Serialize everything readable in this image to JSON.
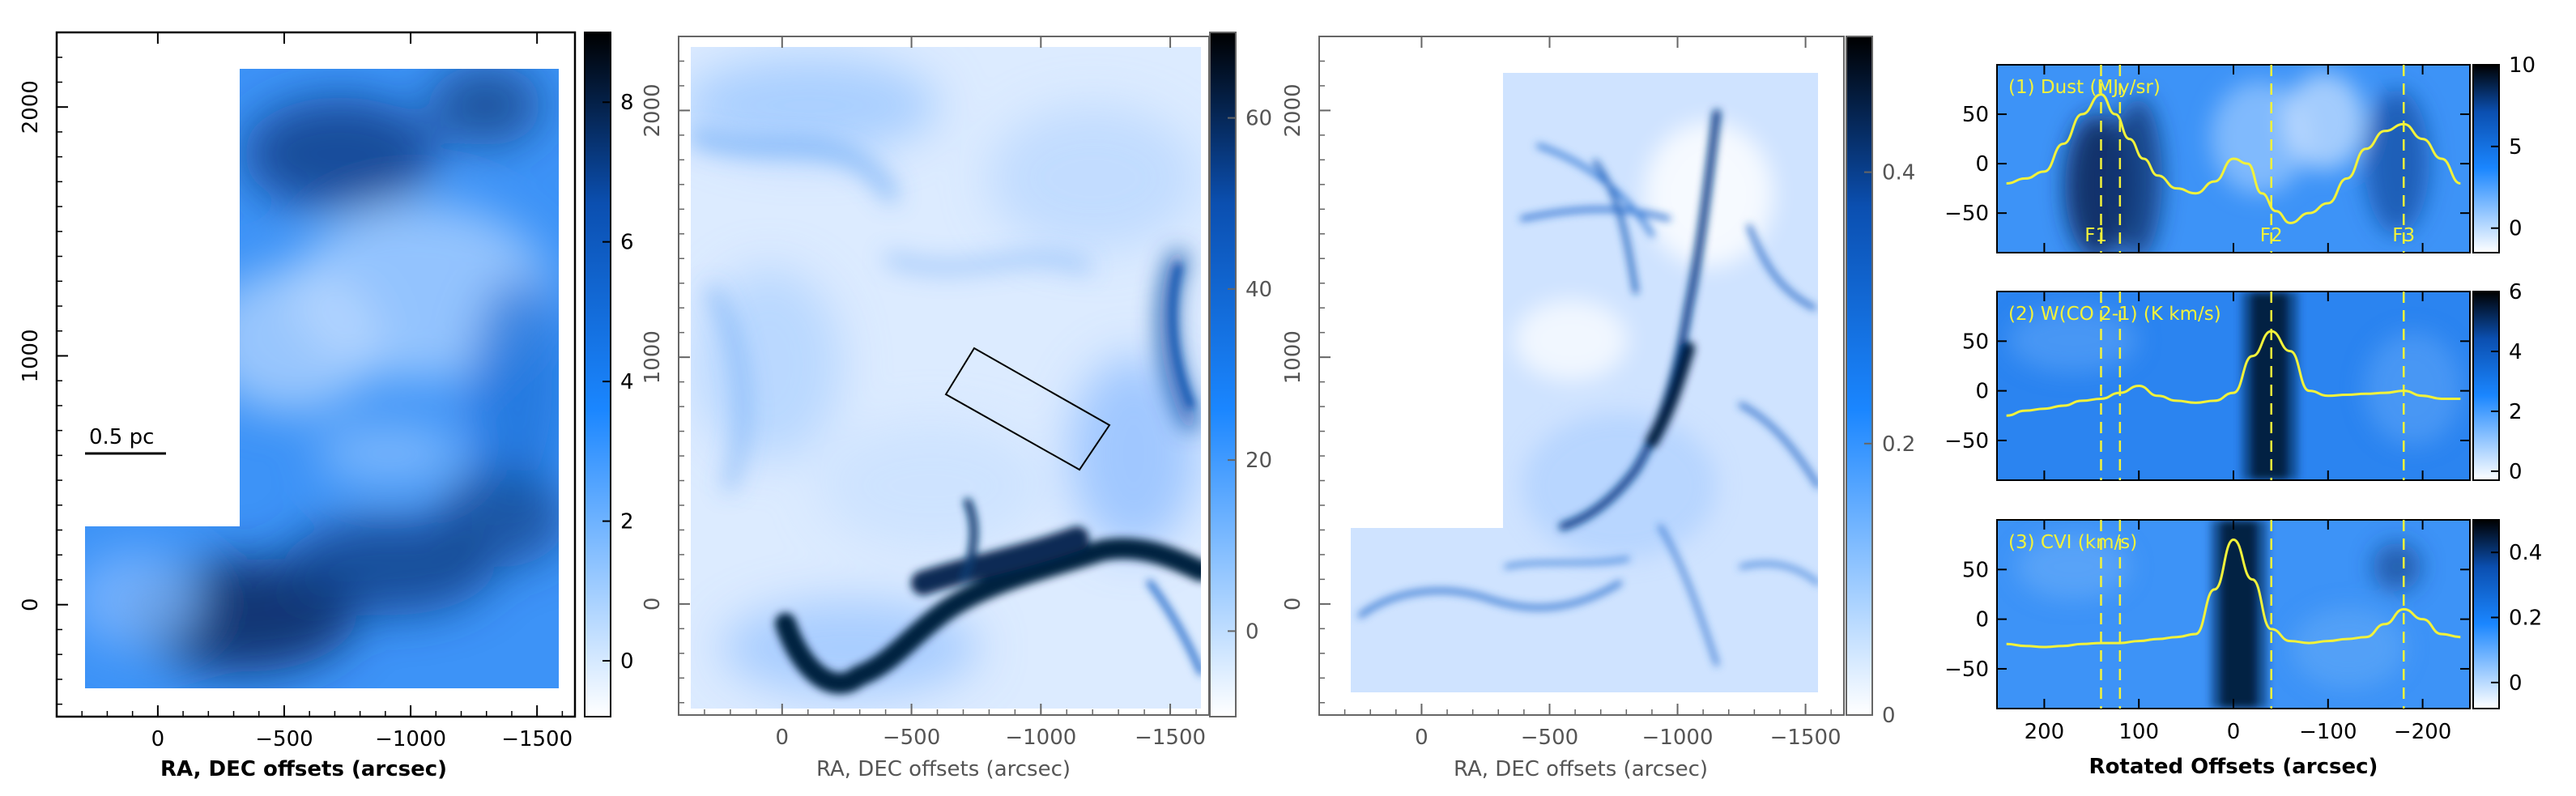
{
  "chart_data": [
    {
      "type": "heatmap",
      "panel": "dust-map",
      "xlabel": "RA, DEC offsets (arcsec)",
      "ylabel": "",
      "xlim": [
        400,
        -1650
      ],
      "ylim": [
        -450,
        2300
      ],
      "x_ticks": [
        0,
        -500,
        -1000,
        -1500
      ],
      "y_ticks": [
        0,
        1000,
        2000
      ],
      "colorbar": {
        "range": [
          -0.8,
          9.0
        ],
        "ticks": [
          0,
          2,
          4,
          6,
          8
        ]
      },
      "annotations": [
        "0.5 pc"
      ],
      "colors": {
        "low": "#ffffff",
        "mid": "#1a86ff",
        "high": "#000000"
      }
    },
    {
      "type": "heatmap",
      "panel": "co-integrated-intensity",
      "xlabel": "RA, DEC offsets (arcsec)",
      "ylabel": "",
      "xlim": [
        400,
        -1650
      ],
      "ylim": [
        -450,
        2300
      ],
      "x_ticks": [
        0,
        -500,
        -1000,
        -1500
      ],
      "y_ticks": [
        0,
        1000,
        2000
      ],
      "colorbar": {
        "range": [
          -10,
          70
        ],
        "ticks": [
          0,
          20,
          40,
          60
        ]
      },
      "colors": {
        "low": "#ffffff",
        "mid": "#1a86ff",
        "high": "#000000"
      }
    },
    {
      "type": "heatmap",
      "panel": "cvi-map",
      "xlabel": "RA, DEC offsets (arcsec)",
      "ylabel": "",
      "xlim": [
        400,
        -1650
      ],
      "ylim": [
        -450,
        2300
      ],
      "x_ticks": [
        0,
        -500,
        -1000,
        -1500
      ],
      "y_ticks": [
        0,
        1000,
        2000
      ],
      "colorbar": {
        "range": [
          0,
          0.5
        ],
        "ticks": [
          0,
          0.2,
          0.4
        ]
      },
      "colors": {
        "low": "#ffffff",
        "mid": "#1a86ff",
        "high": "#000000"
      }
    },
    {
      "type": "line",
      "panel": "strip-profiles",
      "xlabel": "Rotated Offsets (arcsec)",
      "xlim": [
        250,
        -250
      ],
      "x_ticks": [
        200,
        100,
        0,
        -100,
        -200
      ],
      "filament_markers": [
        {
          "label": "F1",
          "x": [
            140,
            120
          ]
        },
        {
          "label": "F2",
          "x": [
            -40
          ]
        },
        {
          "label": "F3",
          "x": [
            -180
          ]
        }
      ],
      "subpanels": [
        {
          "label": "(1) Dust (MJy/sr)",
          "ylim": [
            -90,
            100
          ],
          "y_ticks": [
            50,
            0,
            -50
          ],
          "colorbar": {
            "range": [
              -1.5,
              10
            ],
            "ticks": [
              0,
              5,
              10
            ]
          },
          "series": {
            "x": [
              240,
              220,
              200,
              180,
              160,
              140,
              125,
              110,
              95,
              80,
              60,
              40,
              20,
              0,
              -15,
              -30,
              -45,
              -60,
              -80,
              -100,
              -120,
              -140,
              -160,
              -180,
              -200,
              -220,
              -240
            ],
            "values": [
              -20,
              -15,
              -8,
              20,
              50,
              70,
              50,
              25,
              5,
              -12,
              -25,
              -30,
              -18,
              5,
              0,
              -30,
              -48,
              -60,
              -50,
              -40,
              -15,
              15,
              33,
              40,
              25,
              5,
              -20
            ]
          }
        },
        {
          "label": "(2) W(CO 2-1) (K km/s)",
          "ylim": [
            -90,
            100
          ],
          "y_ticks": [
            50,
            0,
            -50
          ],
          "colorbar": {
            "range": [
              -0.3,
              6
            ],
            "ticks": [
              0,
              2,
              4,
              6
            ]
          },
          "series": {
            "x": [
              240,
              220,
              200,
              180,
              160,
              140,
              120,
              100,
              80,
              60,
              40,
              20,
              0,
              -20,
              -40,
              -60,
              -80,
              -100,
              -120,
              -140,
              -160,
              -180,
              -200,
              -220,
              -240
            ],
            "values": [
              -25,
              -20,
              -18,
              -15,
              -10,
              -8,
              -2,
              5,
              -5,
              -10,
              -12,
              -10,
              -2,
              35,
              60,
              40,
              0,
              -5,
              -4,
              -3,
              -2,
              0,
              -5,
              -8,
              -8
            ]
          }
        },
        {
          "label": "(3) CVI (km/s)",
          "ylim": [
            -90,
            100
          ],
          "y_ticks": [
            50,
            0,
            -50
          ],
          "colorbar": {
            "range": [
              -0.08,
              0.5
            ],
            "ticks": [
              0,
              0.2,
              0.4
            ]
          },
          "series": {
            "x": [
              240,
              220,
              200,
              180,
              160,
              140,
              120,
              100,
              80,
              60,
              40,
              20,
              0,
              -20,
              -40,
              -60,
              -80,
              -100,
              -120,
              -140,
              -160,
              -180,
              -200,
              -220,
              -240
            ],
            "values": [
              -25,
              -27,
              -28,
              -27,
              -25,
              -24,
              -24,
              -22,
              -20,
              -18,
              -15,
              30,
              80,
              40,
              -10,
              -22,
              -24,
              -22,
              -20,
              -18,
              -5,
              10,
              0,
              -15,
              -18
            ]
          }
        }
      ]
    }
  ]
}
